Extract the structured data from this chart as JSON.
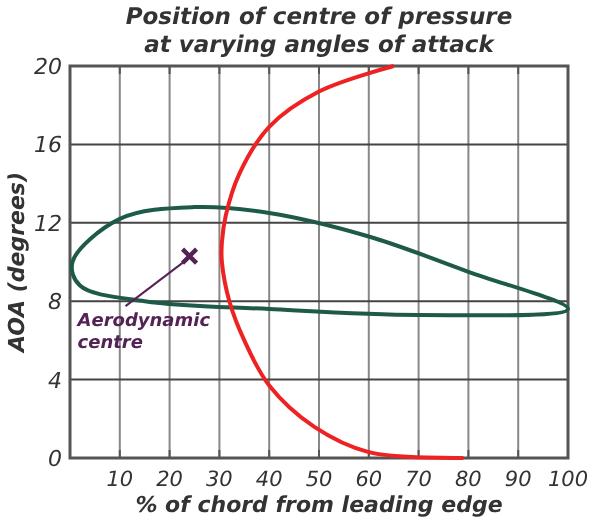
{
  "chart_data": {
    "type": "line",
    "title": "Position of centre of pressure\nat varying angles of attack",
    "xlabel": "% of chord from leading edge",
    "ylabel": "AOA (degrees)",
    "xlim": [
      0,
      100
    ],
    "ylim": [
      0,
      20
    ],
    "xticks": [
      10,
      20,
      30,
      40,
      50,
      60,
      70,
      80,
      90,
      100
    ],
    "yticks": [
      0,
      4,
      8,
      12,
      16,
      20
    ],
    "grid": true,
    "series": [
      {
        "color": "#ee2222",
        "x": [
          79,
          60,
          49,
          40,
          35,
          32,
          30.5,
          30.5,
          31.3,
          34,
          40,
          50,
          65
        ],
        "values": [
          0,
          0.3,
          1.6,
          3.7,
          6,
          8,
          10,
          11,
          12.4,
          14.5,
          16.9,
          18.7,
          20
        ]
      },
      {
        "type": "scatter",
        "color": "#552255",
        "marker": "cross",
        "x": [
          24
        ],
        "values": [
          10.3
        ]
      }
    ],
    "annotations": [
      {
        "text": "Aerodynamic centre",
        "x": 24,
        "y": 10.3
      }
    ]
  }
}
